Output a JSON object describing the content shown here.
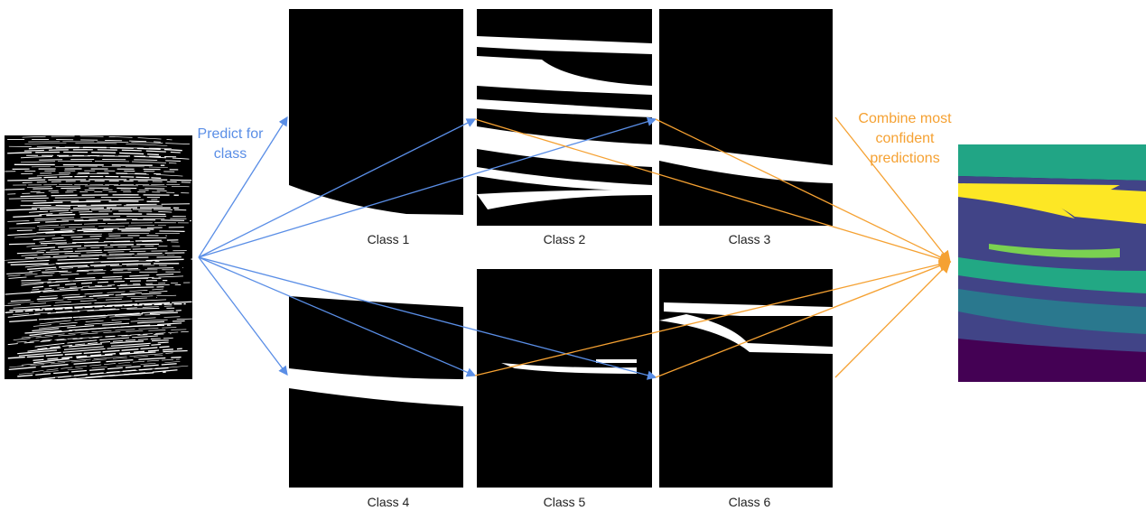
{
  "predict_label": [
    "Predict for",
    "class"
  ],
  "combine_label": [
    "Combine most",
    "confident",
    "predictions"
  ],
  "panels": [
    {
      "label": "Class 1"
    },
    {
      "label": "Class 2"
    },
    {
      "label": "Class 3"
    },
    {
      "label": "Class 4"
    },
    {
      "label": "Class 5"
    },
    {
      "label": "Class 6"
    }
  ]
}
